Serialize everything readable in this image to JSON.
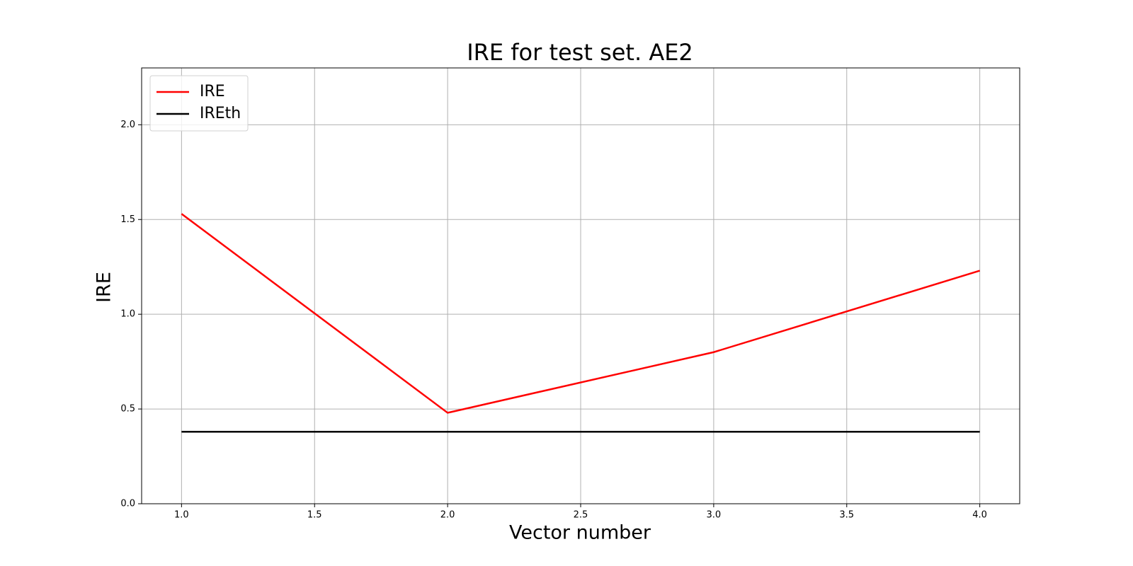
{
  "chart_data": {
    "type": "line",
    "title": "IRE for test set. AE2",
    "xlabel": "Vector number",
    "ylabel": "IRE",
    "x": [
      1,
      2,
      3,
      4
    ],
    "series": [
      {
        "name": "IRE",
        "color": "#ff0000",
        "values": [
          1.53,
          0.48,
          0.8,
          1.23
        ]
      },
      {
        "name": "IREth",
        "color": "#000000",
        "values": [
          0.38,
          0.38,
          0.38,
          0.38
        ]
      }
    ],
    "xlim": [
      0.85,
      4.15
    ],
    "xticks": [
      {
        "value": 1,
        "label": "1.0"
      },
      1.5,
      {
        "value": 2,
        "label": "2.0"
      },
      2.5,
      {
        "value": 3,
        "label": "3.0"
      },
      3.5,
      {
        "value": 4,
        "label": "4.0"
      }
    ],
    "ylim": [
      0,
      2.3
    ],
    "yticks": [
      {
        "value": 0,
        "label": "0.0"
      },
      0.5,
      {
        "value": 1,
        "label": "1.0"
      },
      1.5,
      {
        "value": 2,
        "label": "2.0"
      }
    ],
    "grid": true,
    "legend": "upper left"
  }
}
